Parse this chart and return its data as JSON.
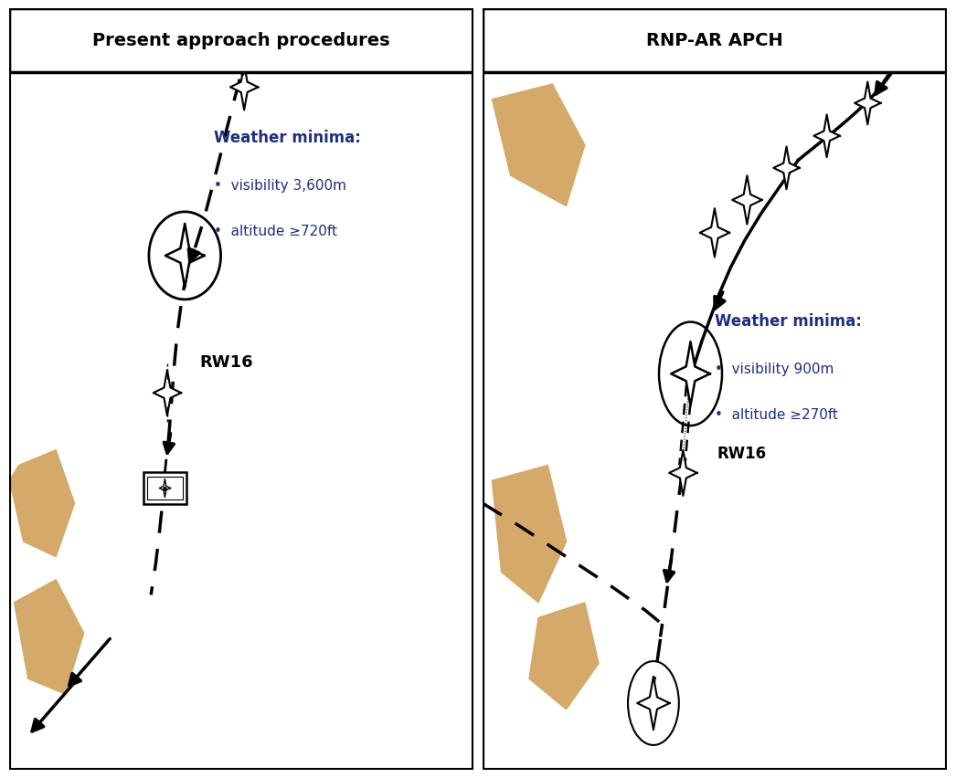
{
  "sky_blue": "#b0cfe0",
  "land_tan": "#d4a96a",
  "white": "#ffffff",
  "black": "#000000",
  "dark_blue": "#1e2f80",
  "left_title": "Present approach procedures",
  "right_title": "RNP-AR APCH",
  "left_weather_title": "Weather minima:",
  "left_weather_line1": "•  visibility 3,600m",
  "left_weather_line2": "•  altitude ≥720ft",
  "right_weather_title": "Weather minima:",
  "right_weather_line1": "•  visibility 900m",
  "right_weather_line2": "•  altitude ≥270ft",
  "rw16": "RW16",
  "title_fontsize": 14,
  "weather_title_fontsize": 12,
  "weather_body_fontsize": 11,
  "rw16_fontsize": 13
}
